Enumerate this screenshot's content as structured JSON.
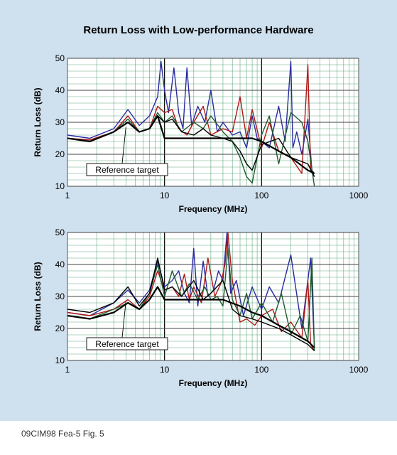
{
  "title": "Return Loss with Low-performance Hardware",
  "footer": "09CIM98 Fea-5 Fig. 5",
  "colors": {
    "background": "#cfe0ee",
    "plot_bg": "#ffffff",
    "grid": "#2e8b57",
    "target": "#000000",
    "blue": "#2a2aa0",
    "red": "#b01818",
    "green": "#1f5a30",
    "black": "#000000"
  },
  "chart_data": [
    {
      "type": "line",
      "xscale": "log",
      "xlim": [
        1,
        1000
      ],
      "ylim": [
        10,
        50
      ],
      "xlabel": "Frequency (MHz)",
      "ylabel": "Return Loss (dB)",
      "xticks": [
        "1",
        "10",
        "100",
        "1000"
      ],
      "yticks": [
        "10",
        "20",
        "30",
        "40",
        "50"
      ],
      "annotation": "Reference target",
      "grid": true,
      "series": [
        {
          "color": "blue",
          "x": [
            1,
            1.7,
            3,
            4.2,
            5.5,
            7,
            8.5,
            9.2,
            10,
            11,
            12.5,
            14,
            15.5,
            17,
            19,
            22,
            26,
            30,
            35,
            40,
            50,
            60,
            70,
            80,
            90,
            100,
            120,
            150,
            175,
            200,
            210,
            230,
            260,
            300,
            330,
            350
          ],
          "y": [
            26,
            25,
            28,
            34,
            29,
            32,
            38,
            49,
            40,
            33,
            47,
            33,
            28,
            47,
            29,
            35,
            30,
            40,
            27,
            30,
            26,
            27,
            22,
            32,
            25,
            24,
            22,
            35,
            24,
            49,
            22,
            27,
            20,
            31,
            15,
            14
          ]
        },
        {
          "color": "red",
          "x": [
            1,
            1.7,
            3,
            4.2,
            5.5,
            7,
            8.5,
            10,
            12,
            14,
            17,
            20,
            25,
            30,
            40,
            50,
            60,
            70,
            80,
            100,
            120,
            150,
            200,
            260,
            300,
            320,
            350
          ],
          "y": [
            25,
            24.5,
            27,
            32,
            27,
            28,
            35,
            33,
            34,
            28,
            26,
            30,
            35,
            26,
            28,
            27,
            38,
            25,
            34,
            22,
            30,
            21,
            19,
            14,
            48,
            15,
            13
          ]
        },
        {
          "color": "green",
          "x": [
            1,
            1.7,
            3,
            4.2,
            5.5,
            7,
            8.5,
            10,
            12,
            15,
            20,
            25,
            30,
            40,
            50,
            60,
            70,
            80,
            100,
            120,
            150,
            200,
            260,
            300,
            350
          ],
          "y": [
            25,
            24,
            27,
            31,
            27,
            28,
            33,
            30,
            32,
            27,
            30,
            28,
            32,
            27,
            24,
            19,
            13,
            11,
            26,
            32,
            17,
            33,
            30,
            24,
            10
          ]
        },
        {
          "color": "black",
          "x": [
            1,
            1.7,
            3,
            4.2,
            5.5,
            7,
            8.5,
            10,
            12,
            15,
            20,
            25,
            30,
            40,
            50,
            60,
            70,
            80,
            100,
            150,
            200,
            300,
            350
          ],
          "y": [
            25,
            24,
            27,
            30,
            27,
            28,
            32,
            30,
            31,
            27,
            26,
            28,
            26,
            25,
            24,
            21,
            17,
            15,
            23,
            25,
            19,
            17,
            13
          ]
        },
        {
          "color": "black",
          "x": [
            1,
            1.7,
            3,
            4.2,
            5.5,
            7,
            8.5,
            10,
            15,
            20,
            30,
            40,
            60,
            80,
            100,
            150,
            200,
            300,
            350
          ],
          "y": [
            25,
            24,
            27,
            30,
            27,
            28,
            32,
            25,
            25,
            25,
            25,
            25,
            25,
            25,
            24,
            21,
            19,
            15,
            14
          ],
          "kind": "target"
        }
      ]
    },
    {
      "type": "line",
      "xscale": "log",
      "xlim": [
        1,
        1000
      ],
      "ylim": [
        10,
        50
      ],
      "xlabel": "Frequency (MHz)",
      "ylabel": "Return Loss (dB)",
      "xticks": [
        "1",
        "10",
        "100",
        "1000"
      ],
      "yticks": [
        "10",
        "20",
        "30",
        "40",
        "50"
      ],
      "annotation": "Reference target",
      "grid": true,
      "series": [
        {
          "color": "blue",
          "x": [
            1,
            1.7,
            3,
            4.2,
            5.5,
            7,
            8.5,
            10,
            12,
            14,
            16,
            18,
            20,
            22,
            25,
            28,
            32,
            36,
            40,
            44,
            48,
            55,
            65,
            80,
            100,
            120,
            150,
            200,
            260,
            320,
            350
          ],
          "y": [
            25,
            24,
            28,
            32,
            28,
            32,
            41,
            33,
            35,
            38,
            31,
            28,
            45,
            27,
            41,
            30,
            32,
            38,
            35,
            50,
            31,
            35,
            24,
            33,
            26,
            33,
            28,
            43,
            20,
            42,
            14
          ]
        },
        {
          "color": "red",
          "x": [
            1,
            1.7,
            3,
            4.2,
            5.5,
            7,
            8.5,
            10,
            12,
            14,
            16,
            18,
            20,
            24,
            28,
            33,
            38,
            42,
            45,
            50,
            60,
            70,
            85,
            100,
            130,
            160,
            200,
            260,
            300,
            320,
            350
          ],
          "y": [
            25,
            24,
            26,
            29,
            26,
            30,
            38,
            32,
            33,
            30,
            37,
            29,
            33,
            28,
            42,
            30,
            34,
            40,
            50,
            35,
            22,
            23,
            21,
            24,
            26,
            19,
            22,
            17,
            35,
            15,
            13
          ]
        },
        {
          "color": "green",
          "x": [
            1,
            1.7,
            3,
            4.2,
            5.5,
            7,
            8.5,
            10,
            12,
            15,
            18,
            22,
            26,
            30,
            35,
            40,
            45,
            50,
            60,
            70,
            80,
            100,
            130,
            160,
            200,
            250,
            300,
            330,
            350
          ],
          "y": [
            24,
            23,
            26,
            28,
            26,
            31,
            40,
            30,
            38,
            30,
            34,
            29,
            33,
            29,
            30,
            27,
            45,
            29,
            24,
            31,
            23,
            28,
            22,
            31,
            18,
            24,
            16,
            42,
            13
          ]
        },
        {
          "color": "black",
          "x": [
            1,
            1.7,
            3,
            4.2,
            5.5,
            7,
            8.5,
            10,
            12,
            15,
            20,
            25,
            30,
            40,
            50,
            60,
            80,
            100,
            150,
            200,
            300,
            350
          ],
          "y": [
            26,
            25,
            28,
            33,
            27,
            31,
            42,
            32,
            33,
            30,
            35,
            29,
            31,
            35,
            26,
            24,
            23,
            22,
            20,
            18,
            15,
            13
          ]
        },
        {
          "color": "black",
          "x": [
            1,
            1.7,
            3,
            4.2,
            5.5,
            7,
            8.5,
            10,
            15,
            20,
            30,
            40,
            60,
            80,
            100,
            150,
            200,
            300,
            350
          ],
          "y": [
            24,
            23,
            25,
            28,
            26,
            29,
            33,
            29,
            29,
            29,
            29,
            29,
            27,
            25,
            24,
            21,
            19,
            16,
            14
          ],
          "kind": "target"
        }
      ]
    }
  ]
}
